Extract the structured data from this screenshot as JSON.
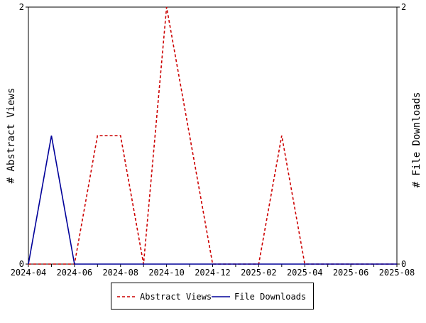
{
  "chart_data": {
    "type": "line",
    "x": [
      "2024-04",
      "2024-05",
      "2024-06",
      "2024-07",
      "2024-08",
      "2024-09",
      "2024-10",
      "2024-11",
      "2024-12",
      "2025-01",
      "2025-02",
      "2025-03",
      "2025-04",
      "2025-05",
      "2025-06",
      "2025-07",
      "2025-08"
    ],
    "x_tick_labels": [
      "2024-04",
      "2024-06",
      "2024-08",
      "2024-10",
      "2024-12",
      "2025-02",
      "2025-04",
      "2025-06",
      "2025-08"
    ],
    "series": [
      {
        "name": "Abstract Views",
        "axis": "left",
        "color": "#cc0000",
        "line_style": "dashed",
        "values": [
          0,
          0,
          0,
          1,
          1,
          0,
          2,
          1,
          0,
          0,
          0,
          1,
          0,
          0,
          0,
          0,
          0
        ]
      },
      {
        "name": "File Downloads",
        "axis": "right",
        "color": "#000099",
        "line_style": "solid",
        "values": [
          0,
          1,
          0,
          0,
          0,
          0,
          0,
          0,
          0,
          0,
          0,
          0,
          0,
          0,
          0,
          0,
          0
        ]
      }
    ],
    "ylabel_left": "# Abstract Views",
    "ylabel_right": "# File Downloads",
    "ylim_left": [
      0,
      2
    ],
    "ylim_right": [
      0,
      2
    ],
    "y_ticks_left": [
      "0",
      "2"
    ],
    "y_ticks_right": [
      "0",
      "2"
    ],
    "grid": false,
    "legend_position": "bottom"
  }
}
